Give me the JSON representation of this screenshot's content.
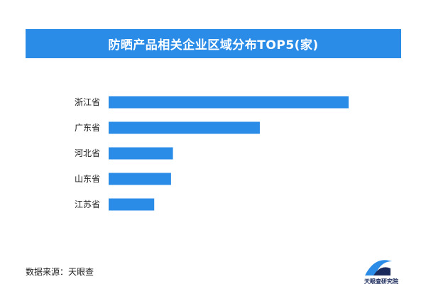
{
  "chart_data": {
    "type": "bar",
    "orientation": "horizontal",
    "title": "防晒产品相关企业区域分布TOP5(家)",
    "categories": [
      "浙江省",
      "广东省",
      "河北省",
      "山东省",
      "江苏省"
    ],
    "values": [
      1000,
      630,
      268,
      260,
      190
    ],
    "xlim": [
      0,
      1000
    ],
    "grid": false,
    "legend": "none",
    "bar_color": "#2b8ce8"
  },
  "footer": {
    "source": "数据来源：天眼查",
    "logo_text": "天眼查研究院"
  },
  "colors": {
    "accent": "#2b8ce8",
    "logo_dark": "#1a2a5c"
  }
}
